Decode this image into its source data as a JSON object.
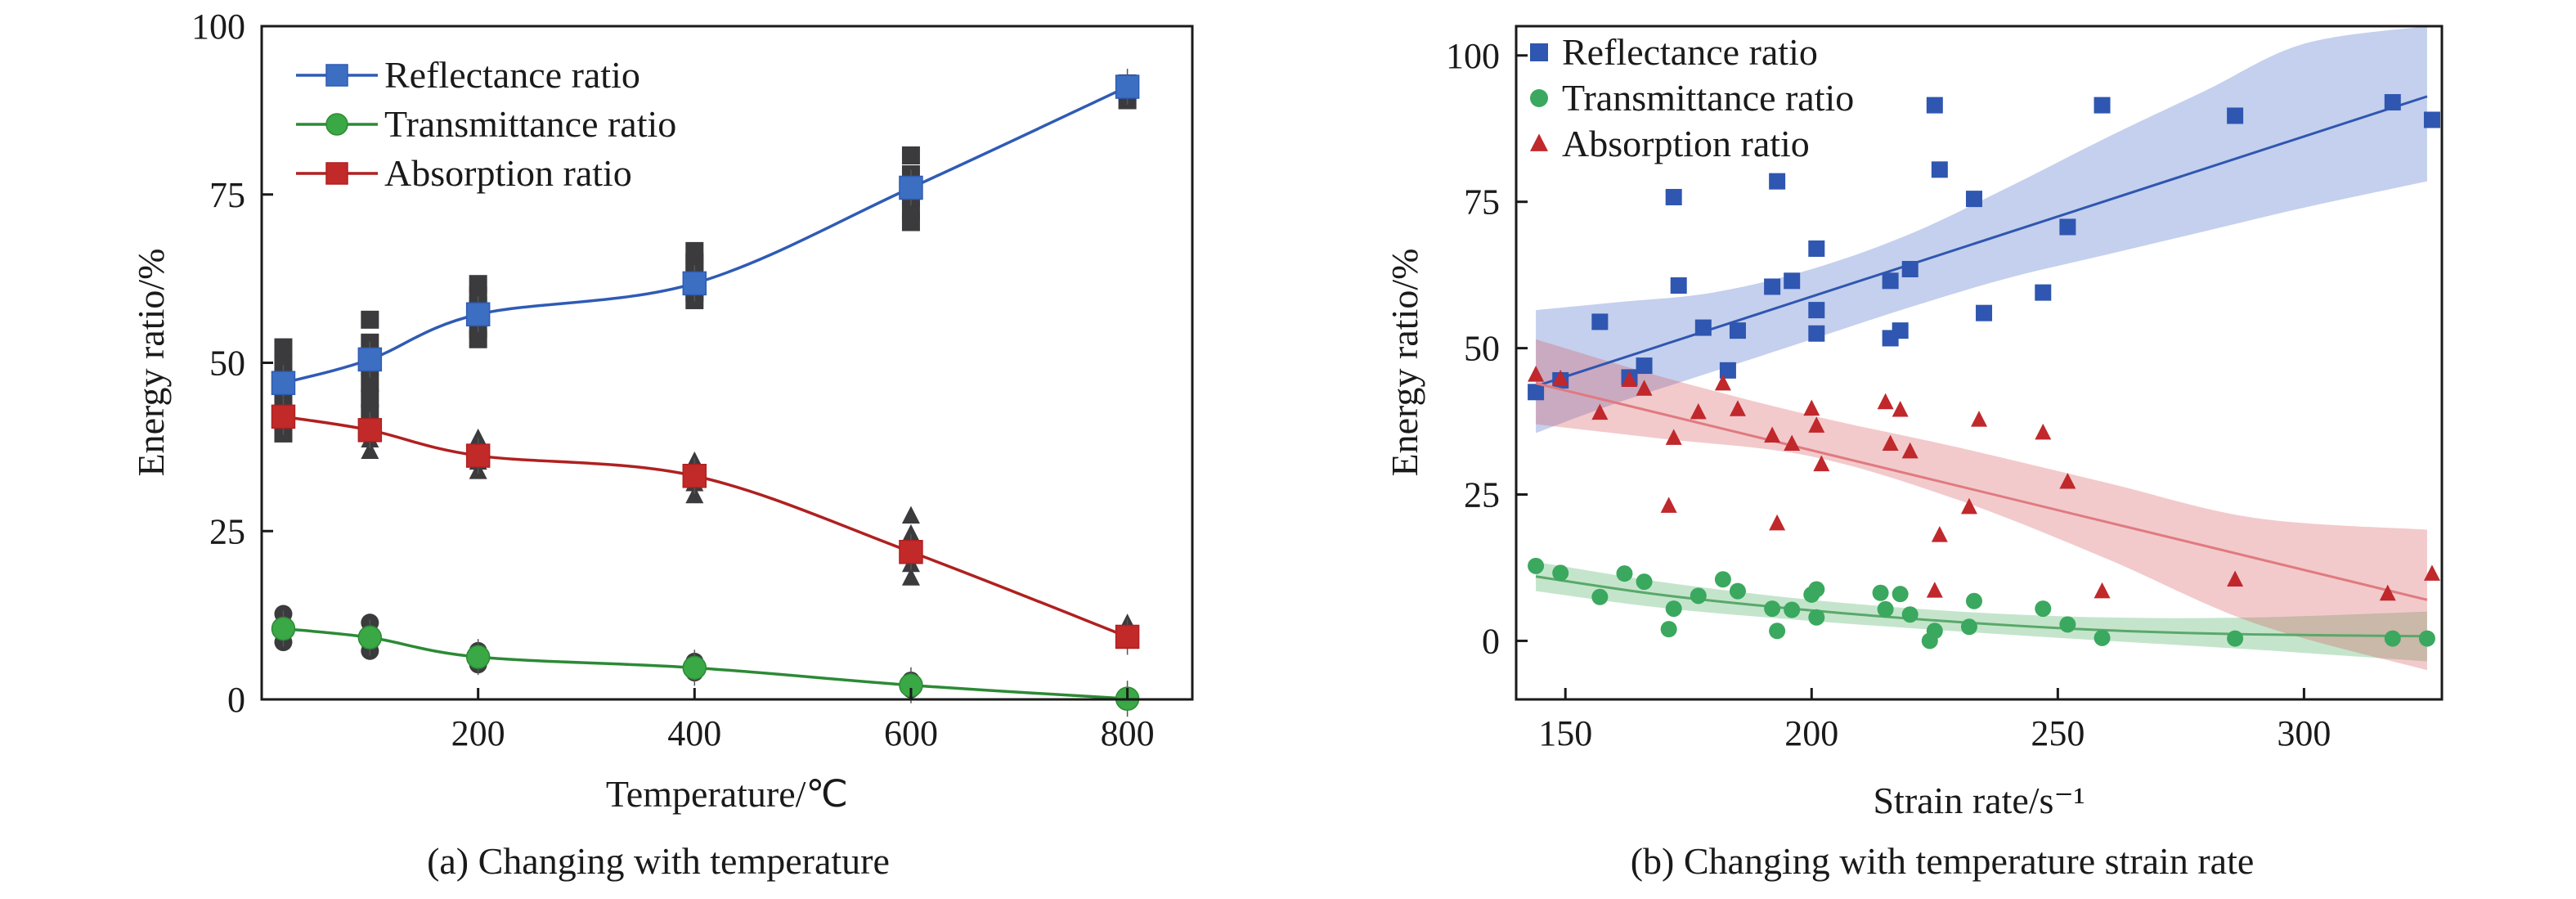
{
  "chart_data": [
    {
      "type": "line",
      "caption": "(a) Changing with temperature",
      "xlabel": "Temperature/℃",
      "ylabel": "Energy ratio/%",
      "xlim": [
        0,
        860
      ],
      "ylim": [
        0,
        100
      ],
      "x_ticks": [
        200,
        400,
        600,
        800
      ],
      "y_ticks": [
        0,
        25,
        50,
        75,
        100
      ],
      "legend_position": "top-left",
      "x": [
        20,
        100,
        200,
        400,
        600,
        800
      ],
      "series": [
        {
          "name": "Reflectance ratio",
          "color": "#3c6fc2",
          "line_color": "#2f5bb5",
          "marker": "square",
          "values": [
            47.0,
            50.5,
            57.2,
            61.8,
            76.0,
            91.0
          ],
          "scatter": [
            [
              [
                39.5,
                41.2,
                44,
                46.5,
                48,
                50,
                52.3
              ],
              [
                42.5,
                44.7,
                47,
                49.5,
                51,
                53,
                56.4
              ],
              [
                53.5,
                55,
                56.8,
                58.5,
                60,
                61.7
              ],
              [
                59.3,
                60.5,
                62,
                64,
                65,
                66.6
              ],
              [
                70.9,
                72.5,
                74.5,
                76,
                78,
                80.8
              ],
              [
                89,
                90.3,
                91.5
              ]
            ]
          ]
        },
        {
          "name": "Transmittance ratio",
          "color": "#3aa845",
          "line_color": "#2c8a35",
          "marker": "circle",
          "values": [
            10.5,
            9.2,
            6.3,
            4.7,
            2.1,
            0.1
          ],
          "scatter": [
            [
              [
                8.5,
                9.8,
                11.2,
                12.7
              ],
              [
                7.2,
                8.4,
                9.6,
                11.4
              ],
              [
                5.2,
                6.2,
                7.2
              ],
              [
                4,
                4.8,
                5.6
              ],
              [
                1.5,
                2.1,
                2.8
              ],
              [
                0,
                0.2
              ]
            ]
          ]
        },
        {
          "name": "Absorption ratio",
          "color": "#c22a2a",
          "line_color": "#b02020",
          "marker": "square",
          "values": [
            42.0,
            40.0,
            36.2,
            33.2,
            21.9,
            9.3
          ],
          "scatter": [
            [
              [
                39.5,
                40.8,
                42,
                43.3
              ],
              [
                36.8,
                38.5,
                40,
                41.8
              ],
              [
                33.8,
                35.2,
                37,
                38.7
              ],
              [
                30.2,
                32,
                33.8,
                35.3
              ],
              [
                18,
                20,
                22,
                24.5,
                27.2
              ],
              [
                8.8,
                9.3,
                10.4,
                11.2
              ]
            ]
          ]
        }
      ]
    },
    {
      "type": "scatter",
      "caption": "(b) Changing with temperature strain rate",
      "xlabel": "Strain rate/s⁻¹",
      "ylabel": "Energy ratio/%",
      "xlim": [
        140,
        328
      ],
      "ylim": [
        -10,
        105
      ],
      "x_ticks": [
        150,
        200,
        250,
        300
      ],
      "y_ticks": [
        0,
        25,
        50,
        75,
        100
      ],
      "legend_position": "top-left",
      "series": [
        {
          "name": "Reflectance ratio",
          "color": "#2f56b0",
          "marker": "square",
          "points": [
            [
              144,
              42.5
            ],
            [
              149,
              44.5
            ],
            [
              157,
              54.5
            ],
            [
              163,
              45
            ],
            [
              166,
              47
            ],
            [
              172,
              75.8
            ],
            [
              173,
              60.7
            ],
            [
              178,
              53.5
            ],
            [
              183,
              46.2
            ],
            [
              185,
              53
            ],
            [
              192,
              60.5
            ],
            [
              193,
              78.5
            ],
            [
              196,
              61.5
            ],
            [
              201,
              52.5
            ],
            [
              201,
              56.5
            ],
            [
              201,
              67
            ],
            [
              216,
              51.7
            ],
            [
              216,
              61.5
            ],
            [
              218,
              53
            ],
            [
              220,
              63.5
            ],
            [
              225,
              91.5
            ],
            [
              226,
              80.5
            ],
            [
              233,
              75.5
            ],
            [
              235,
              56
            ],
            [
              247,
              59.5
            ],
            [
              252,
              70.7
            ],
            [
              259,
              91.5
            ],
            [
              286,
              89.7
            ],
            [
              318,
              92
            ],
            [
              326,
              89
            ]
          ],
          "fit": {
            "start": 144,
            "end": 325,
            "y_start": 43.5,
            "y_end": 93
          },
          "band_upper": [
            [
              144,
              56.5
            ],
            [
              160,
              57.8
            ],
            [
              180,
              59.5
            ],
            [
              200,
              63.5
            ],
            [
              220,
              69.5
            ],
            [
              240,
              77.5
            ],
            [
              260,
              86
            ],
            [
              280,
              94
            ],
            [
              300,
              102
            ],
            [
              325,
              109
            ]
          ],
          "band_lower": [
            [
              144,
              35.5
            ],
            [
              160,
              40.5
            ],
            [
              180,
              46
            ],
            [
              200,
              51.5
            ],
            [
              220,
              57
            ],
            [
              240,
              62
            ],
            [
              260,
              66
            ],
            [
              280,
              70
            ],
            [
              300,
              74
            ],
            [
              325,
              78.5
            ]
          ]
        },
        {
          "name": "Transmittance ratio",
          "color": "#3aa85e",
          "marker": "circle",
          "points": [
            [
              144,
              12.8
            ],
            [
              149,
              11.6
            ],
            [
              157,
              7.5
            ],
            [
              162,
              11.5
            ],
            [
              166,
              10.1
            ],
            [
              171,
              2
            ],
            [
              172,
              5.5
            ],
            [
              177,
              7.7
            ],
            [
              182,
              10.5
            ],
            [
              185,
              8.5
            ],
            [
              192,
              5.5
            ],
            [
              193,
              1.7
            ],
            [
              196,
              5.3
            ],
            [
              200,
              7.9
            ],
            [
              201,
              8.8
            ],
            [
              201,
              4
            ],
            [
              214,
              8.2
            ],
            [
              215,
              5.4
            ],
            [
              218,
              8
            ],
            [
              220,
              4.5
            ],
            [
              224,
              0
            ],
            [
              225,
              1.7
            ],
            [
              232,
              2.4
            ],
            [
              233,
              6.8
            ],
            [
              247,
              5.5
            ],
            [
              252,
              2.8
            ],
            [
              259,
              0.5
            ],
            [
              286,
              0.4
            ],
            [
              318,
              0.4
            ],
            [
              325,
              0.4
            ]
          ],
          "fit": [
            [
              144,
              11
            ],
            [
              170,
              7.8
            ],
            [
              200,
              5.2
            ],
            [
              230,
              3.2
            ],
            [
              260,
              1.8
            ],
            [
              290,
              1.1
            ],
            [
              325,
              0.8
            ]
          ],
          "band_upper": [
            [
              144,
              13.5
            ],
            [
              170,
              10
            ],
            [
              200,
              7
            ],
            [
              230,
              5
            ],
            [
              260,
              4
            ],
            [
              290,
              4
            ],
            [
              325,
              5
            ]
          ],
          "band_lower": [
            [
              144,
              8.5
            ],
            [
              170,
              5.6
            ],
            [
              200,
              3.4
            ],
            [
              230,
              1.6
            ],
            [
              260,
              0
            ],
            [
              290,
              -1.5
            ],
            [
              325,
              -3.5
            ]
          ]
        },
        {
          "name": "Absorption ratio",
          "color": "#c0282c",
          "marker": "triangle",
          "points": [
            [
              144,
              45.4
            ],
            [
              149,
              44.7
            ],
            [
              157,
              38.9
            ],
            [
              163,
              44.5
            ],
            [
              166,
              43
            ],
            [
              171,
              23
            ],
            [
              172,
              34.6
            ],
            [
              177,
              39
            ],
            [
              182,
              43.9
            ],
            [
              185,
              39.5
            ],
            [
              192,
              35
            ],
            [
              193,
              20
            ],
            [
              196,
              33.6
            ],
            [
              200,
              39.6
            ],
            [
              201,
              36.7
            ],
            [
              202,
              30.1
            ],
            [
              215,
              40.7
            ],
            [
              216,
              33.6
            ],
            [
              218,
              39.4
            ],
            [
              220,
              32.3
            ],
            [
              225,
              8.5
            ],
            [
              226,
              18
            ],
            [
              232,
              22.8
            ],
            [
              234,
              37.7
            ],
            [
              247,
              35.5
            ],
            [
              252,
              27.1
            ],
            [
              259,
              8.4
            ],
            [
              286,
              10.4
            ],
            [
              317,
              8
            ],
            [
              326,
              11.4
            ]
          ],
          "fit": {
            "start": 144,
            "end": 325,
            "y_start": 44,
            "y_end": 7
          },
          "band_upper": [
            [
              144,
              51.5
            ],
            [
              170,
              45
            ],
            [
              200,
              38.5
            ],
            [
              230,
              33
            ],
            [
              260,
              27
            ],
            [
              290,
              21
            ],
            [
              325,
              19
            ]
          ],
          "band_lower": [
            [
              144,
              37
            ],
            [
              170,
              34.5
            ],
            [
              200,
              31.5
            ],
            [
              230,
              24
            ],
            [
              260,
              14
            ],
            [
              290,
              3
            ],
            [
              325,
              -5
            ]
          ]
        }
      ]
    }
  ]
}
